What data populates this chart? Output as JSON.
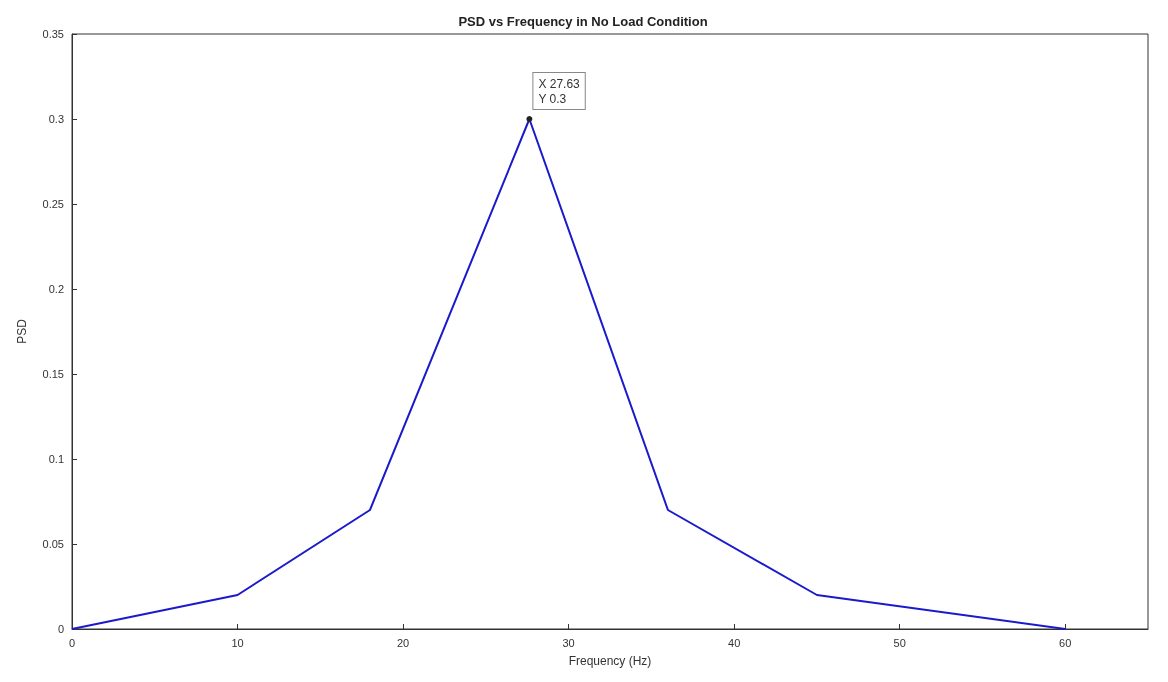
{
  "chart_data": {
    "type": "line",
    "title": "PSD vs Frequency in No Load Condition",
    "xlabel": "Frequency (Hz)",
    "ylabel": "PSD",
    "x": [
      0,
      10,
      18,
      27.63,
      36,
      45,
      60
    ],
    "series": [
      {
        "color": "#1a1acc",
        "values": [
          0,
          0.02,
          0.07,
          0.3,
          0.07,
          0.02,
          0
        ]
      }
    ],
    "xlim": [
      0,
      65
    ],
    "xticks": [
      0,
      10,
      20,
      30,
      40,
      50,
      60
    ],
    "ylim": [
      0,
      0.35
    ],
    "yticks": [
      0,
      0.05,
      0.1,
      0.15,
      0.2,
      0.25,
      0.3,
      0.35
    ],
    "annotations": [
      {
        "text": "X 27.63\nY 0.3",
        "x": 27.63,
        "y": 0.3
      }
    ],
    "grid": false,
    "marker": "none",
    "line_style": "solid"
  }
}
